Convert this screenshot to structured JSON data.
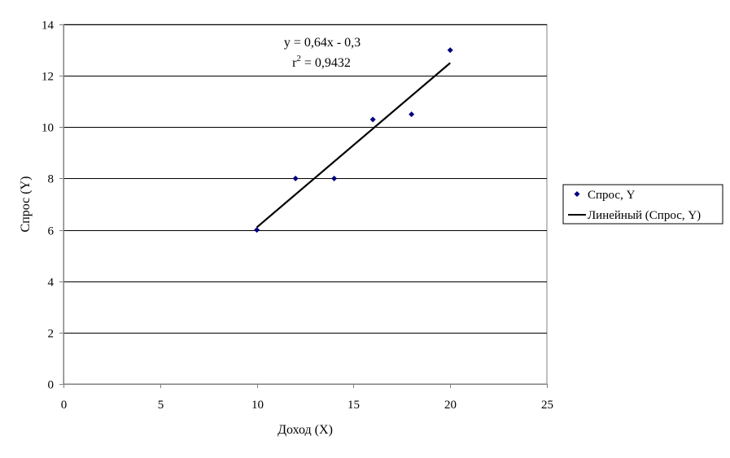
{
  "chart_data": {
    "type": "scatter",
    "title": "",
    "xlabel": "Доход (X)",
    "ylabel": "Спрос (Y)",
    "xlim": [
      0,
      25
    ],
    "ylim": [
      0,
      14
    ],
    "xticks": [
      0,
      5,
      10,
      15,
      20,
      25
    ],
    "yticks": [
      0,
      2,
      4,
      6,
      8,
      10,
      12,
      14
    ],
    "grid": "horizontal",
    "legend_position": "right",
    "series": [
      {
        "name": "Спрос, Y",
        "kind": "scatter",
        "marker": "diamond",
        "color": "#000080",
        "x": [
          10,
          12,
          14,
          16,
          18,
          20
        ],
        "y": [
          6,
          8,
          8,
          10.3,
          10.5,
          13
        ]
      },
      {
        "name": "Линейный (Спрос, Y)",
        "kind": "trendline",
        "color": "#000000",
        "x": [
          10,
          20
        ],
        "y": [
          6.1,
          12.5
        ]
      }
    ],
    "annotations": {
      "equation": "y = 0,64x - 0,3",
      "r_squared_prefix": "r",
      "r_squared_exponent": "2",
      "r_squared_value": " = 0,9432"
    }
  }
}
